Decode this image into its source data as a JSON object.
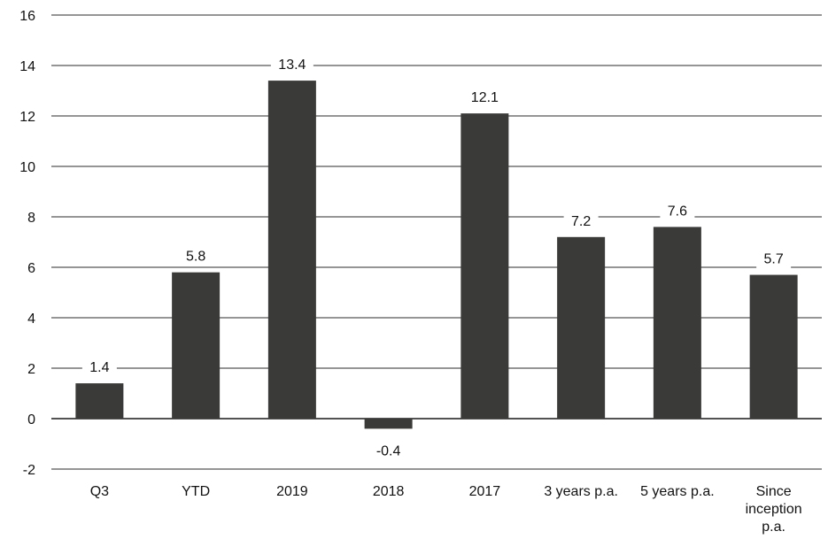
{
  "chart_data": {
    "type": "bar",
    "categories": [
      "Q3",
      "YTD",
      "2019",
      "2018",
      "2017",
      "3 years p.a.",
      "5 years p.a.",
      "Since inception p.a."
    ],
    "category_lines": [
      [
        "Q3"
      ],
      [
        "YTD"
      ],
      [
        "2019"
      ],
      [
        "2018"
      ],
      [
        "2017"
      ],
      [
        "3 years p.a."
      ],
      [
        "5 years p.a."
      ],
      [
        "Since",
        "inception",
        "p.a."
      ]
    ],
    "values": [
      1.4,
      5.8,
      13.4,
      -0.4,
      12.1,
      7.2,
      7.6,
      5.7
    ],
    "data_labels": [
      "1.4",
      "5.8",
      "13.4",
      "-0.4",
      "12.1",
      "7.2",
      "7.6",
      "5.7"
    ],
    "ylim": [
      -2,
      16
    ],
    "yticks": [
      -2,
      0,
      2,
      4,
      6,
      8,
      10,
      12,
      14,
      16
    ],
    "grid": true,
    "bar_color": "#3a3b38",
    "title": "",
    "xlabel": "",
    "ylabel": ""
  }
}
